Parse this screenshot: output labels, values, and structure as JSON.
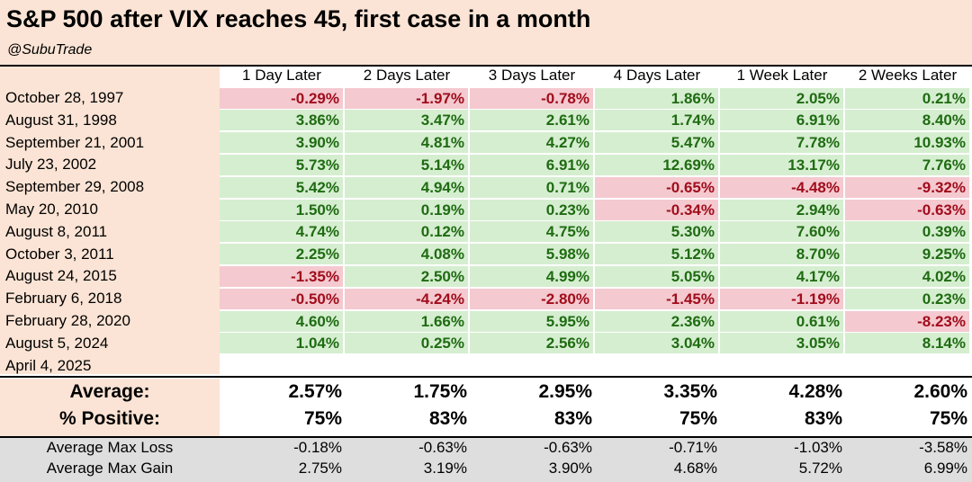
{
  "title": "S&P 500 after VIX reaches 45, first case in a month",
  "subtitle": "@SubuTrade",
  "colors": {
    "header_bg": "#fbe4d5",
    "positive_bg": "#d5eed0",
    "positive_text": "#1f6b12",
    "negative_bg": "#f4c9cf",
    "negative_text": "#a00d1c",
    "grey_band": "#dedede"
  },
  "chart_data": {
    "type": "table",
    "title": "S&P 500 after VIX reaches 45, first case in a month",
    "columns": [
      "1 Day Later",
      "2 Days Later",
      "3 Days Later",
      "4 Days Later",
      "1 Week Later",
      "2 Weeks Later"
    ],
    "rows": [
      {
        "date": "October 28, 1997",
        "values": [
          "-0.29%",
          "-1.97%",
          "-0.78%",
          "1.86%",
          "2.05%",
          "0.21%"
        ]
      },
      {
        "date": "August 31, 1998",
        "values": [
          "3.86%",
          "3.47%",
          "2.61%",
          "1.74%",
          "6.91%",
          "8.40%"
        ]
      },
      {
        "date": "September 21, 2001",
        "values": [
          "3.90%",
          "4.81%",
          "4.27%",
          "5.47%",
          "7.78%",
          "10.93%"
        ]
      },
      {
        "date": "July 23, 2002",
        "values": [
          "5.73%",
          "5.14%",
          "6.91%",
          "12.69%",
          "13.17%",
          "7.76%"
        ]
      },
      {
        "date": "September 29, 2008",
        "values": [
          "5.42%",
          "4.94%",
          "0.71%",
          "-0.65%",
          "-4.48%",
          "-9.32%"
        ]
      },
      {
        "date": "May 20, 2010",
        "values": [
          "1.50%",
          "0.19%",
          "0.23%",
          "-0.34%",
          "2.94%",
          "-0.63%"
        ]
      },
      {
        "date": "August 8, 2011",
        "values": [
          "4.74%",
          "0.12%",
          "4.75%",
          "5.30%",
          "7.60%",
          "0.39%"
        ]
      },
      {
        "date": "October 3, 2011",
        "values": [
          "2.25%",
          "4.08%",
          "5.98%",
          "5.12%",
          "8.70%",
          "9.25%"
        ]
      },
      {
        "date": "August 24, 2015",
        "values": [
          "-1.35%",
          "2.50%",
          "4.99%",
          "5.05%",
          "4.17%",
          "4.02%"
        ]
      },
      {
        "date": "February 6, 2018",
        "values": [
          "-0.50%",
          "-4.24%",
          "-2.80%",
          "-1.45%",
          "-1.19%",
          "0.23%"
        ]
      },
      {
        "date": "February 28, 2020",
        "values": [
          "4.60%",
          "1.66%",
          "5.95%",
          "2.36%",
          "0.61%",
          "-8.23%"
        ]
      },
      {
        "date": "August 5, 2024",
        "values": [
          "1.04%",
          "0.25%",
          "2.56%",
          "3.04%",
          "3.05%",
          "8.14%"
        ]
      },
      {
        "date": "April 4, 2025",
        "values": [
          "",
          "",
          "",
          "",
          "",
          ""
        ]
      }
    ],
    "summary": [
      {
        "label": "Average:",
        "values": [
          "2.57%",
          "1.75%",
          "2.95%",
          "3.35%",
          "4.28%",
          "2.60%"
        ]
      },
      {
        "label": "% Positive:",
        "values": [
          "75%",
          "83%",
          "83%",
          "75%",
          "83%",
          "75%"
        ]
      }
    ],
    "extra": [
      {
        "label": "Average Max Loss",
        "values": [
          "-0.18%",
          "-0.63%",
          "-0.63%",
          "-0.71%",
          "-1.03%",
          "-3.58%"
        ]
      },
      {
        "label": "Average Max Gain",
        "values": [
          "2.75%",
          "3.19%",
          "3.90%",
          "4.68%",
          "5.72%",
          "6.99%"
        ]
      }
    ]
  }
}
